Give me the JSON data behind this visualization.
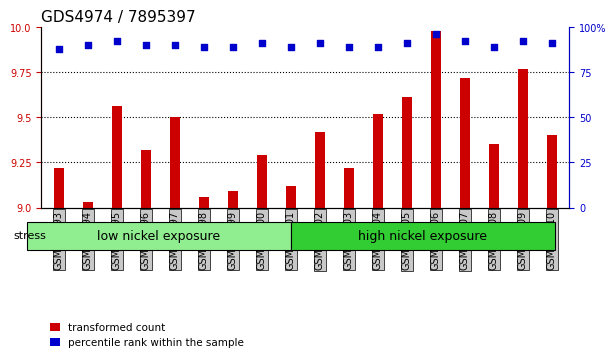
{
  "title": "GDS4974 / 7895397",
  "samples": [
    "GSM992693",
    "GSM992694",
    "GSM992695",
    "GSM992696",
    "GSM992697",
    "GSM992698",
    "GSM992699",
    "GSM992700",
    "GSM992701",
    "GSM992702",
    "GSM992703",
    "GSM992704",
    "GSM992705",
    "GSM992706",
    "GSM992707",
    "GSM992708",
    "GSM992709",
    "GSM992710"
  ],
  "red_values": [
    9.22,
    9.03,
    9.56,
    9.32,
    9.5,
    9.06,
    9.09,
    9.29,
    9.12,
    9.42,
    9.22,
    9.52,
    9.61,
    9.98,
    9.72,
    9.35,
    9.77,
    9.4
  ],
  "blue_values": [
    88,
    90,
    92,
    90,
    90,
    89,
    89,
    91,
    89,
    91,
    89,
    89,
    91,
    96,
    92,
    89,
    92,
    91
  ],
  "groups": [
    {
      "label": "low nickel exposure",
      "start": 0,
      "end": 9,
      "color": "#90ee90"
    },
    {
      "label": "high nickel exposure",
      "start": 9,
      "end": 18,
      "color": "#32cd32"
    }
  ],
  "stress_label": "stress",
  "ylim_left": [
    9.0,
    10.0
  ],
  "ylim_right": [
    0,
    100
  ],
  "yticks_left": [
    9.0,
    9.25,
    9.5,
    9.75,
    10.0
  ],
  "yticks_right": [
    0,
    25,
    50,
    75,
    100
  ],
  "red_color": "#cc0000",
  "blue_color": "#0000cc",
  "bar_width": 0.35,
  "legend_red": "transformed count",
  "legend_blue": "percentile rank within the sample",
  "title_fontsize": 11,
  "tick_fontsize": 7,
  "label_fontsize": 8,
  "group_label_fontsize": 9
}
